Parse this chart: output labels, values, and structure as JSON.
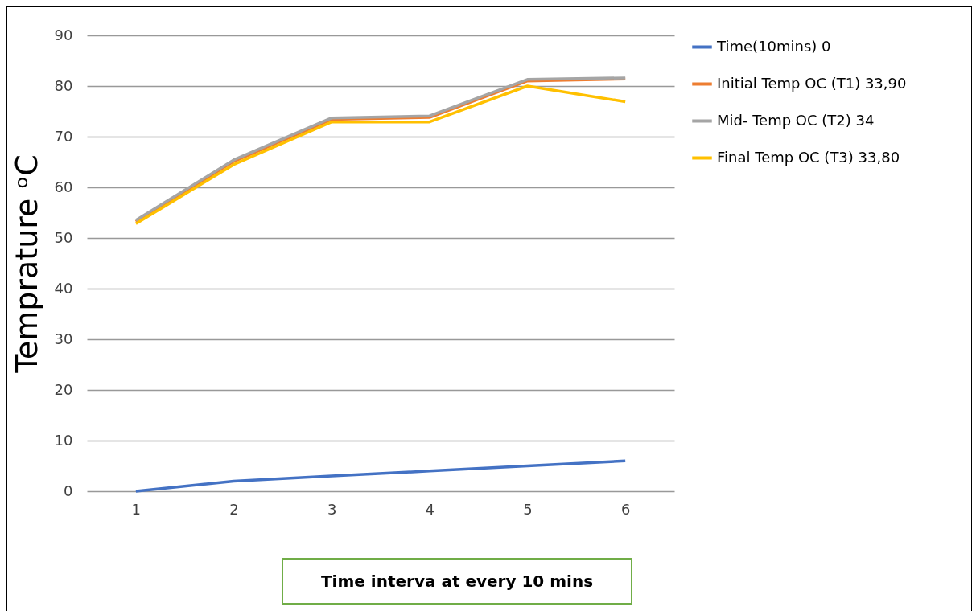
{
  "chart_data": {
    "type": "line",
    "xlabel": "Time interva at every 10 mins",
    "ylabel": "Temprature ᵒC",
    "categories": [
      "1",
      "2",
      "3",
      "4",
      "5",
      "6"
    ],
    "series": [
      {
        "name": "Time(10mins) 0",
        "color": "#4472c4",
        "values": [
          0,
          2,
          3,
          4,
          5,
          6
        ]
      },
      {
        "name": "Initial Temp OC (T1) 33,90",
        "color": "#ed7d31",
        "values": [
          53.2,
          65.1,
          73.4,
          73.8,
          81,
          81.4
        ]
      },
      {
        "name": "Mid- Temp OC (T2) 34",
        "color": "#a5a5a5",
        "values": [
          53.5,
          65.4,
          73.7,
          74.1,
          81.3,
          81.6
        ]
      },
      {
        "name": "Final Temp OC (T3) 33,80",
        "color": "#ffc000",
        "values": [
          52.8,
          64.5,
          72.9,
          72.9,
          80,
          76.9
        ]
      }
    ],
    "ylim": [
      0,
      90
    ],
    "yticks": [
      0,
      10,
      20,
      30,
      40,
      50,
      60,
      70,
      80,
      90
    ],
    "grid": "y",
    "legend": "right",
    "marker": "none",
    "line_style": "solid"
  }
}
